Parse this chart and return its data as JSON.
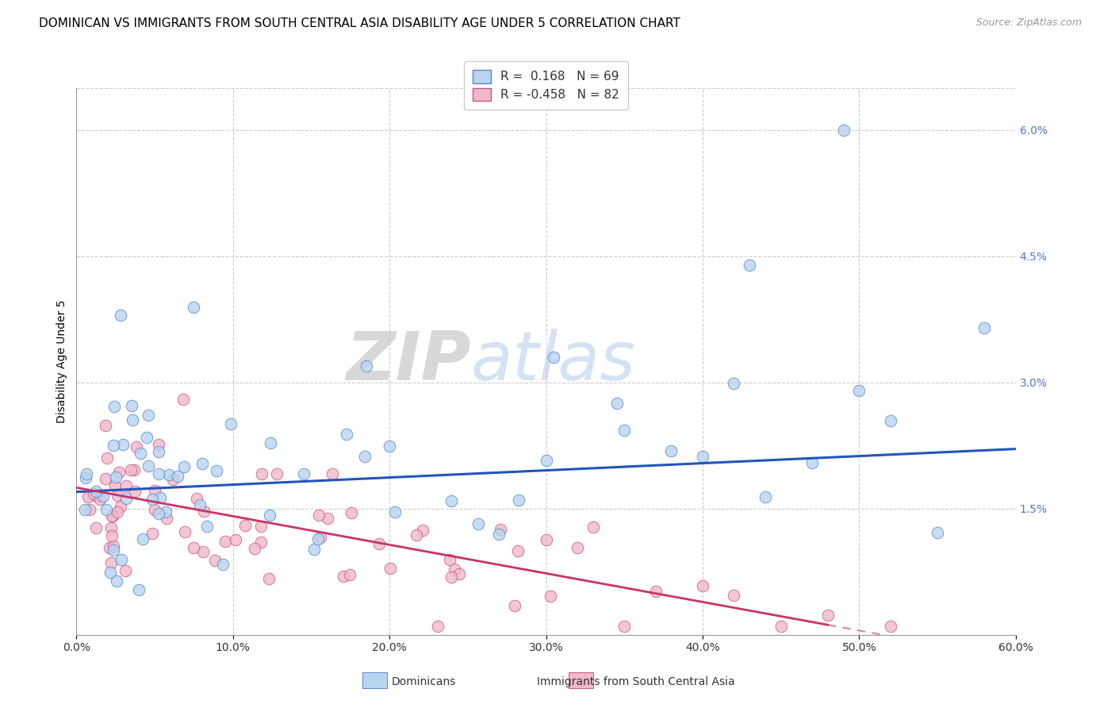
{
  "title": "DOMINICAN VS IMMIGRANTS FROM SOUTH CENTRAL ASIA DISABILITY AGE UNDER 5 CORRELATION CHART",
  "source": "Source: ZipAtlas.com",
  "ylabel": "Disability Age Under 5",
  "xlim": [
    0.0,
    0.6
  ],
  "ylim": [
    0.0,
    0.065
  ],
  "xticks": [
    0.0,
    0.1,
    0.2,
    0.3,
    0.4,
    0.5,
    0.6
  ],
  "xticklabels": [
    "0.0%",
    "10.0%",
    "20.0%",
    "30.0%",
    "40.0%",
    "50.0%",
    "60.0%"
  ],
  "yticks_right": [
    0.015,
    0.03,
    0.045,
    0.06
  ],
  "ytick_right_labels": [
    "1.5%",
    "3.0%",
    "4.5%",
    "6.0%"
  ],
  "blue_color": "#b8d4f0",
  "blue_edge_color": "#5588cc",
  "pink_color": "#f0b8c8",
  "pink_edge_color": "#cc5588",
  "blue_line_color": "#2255bb",
  "pink_line_color": "#cc3366",
  "legend_blue_label": "Dominicans",
  "legend_pink_label": "Immigrants from South Central Asia",
  "R_blue": 0.168,
  "N_blue": 69,
  "R_pink": -0.458,
  "N_pink": 82,
  "watermark_zip": "ZIP",
  "watermark_atlas": "atlas",
  "right_axis_color": "#5577cc",
  "grid_color": "#cccccc",
  "title_fontsize": 11,
  "axis_label_fontsize": 10,
  "tick_fontsize": 10,
  "blue_line_intercept": 0.017,
  "blue_line_slope": 0.0085,
  "pink_line_intercept": 0.0175,
  "pink_line_slope": -0.034
}
